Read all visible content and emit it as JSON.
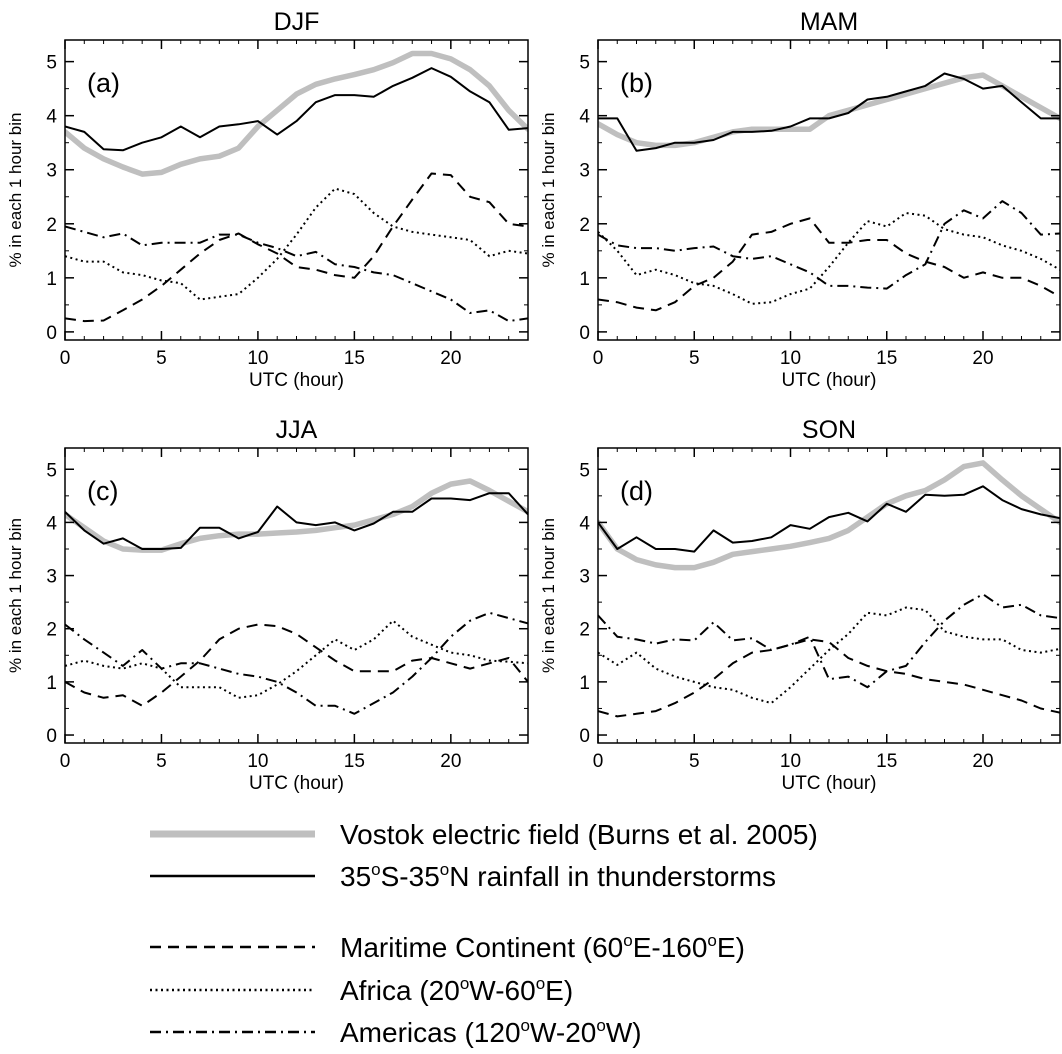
{
  "chart_data": {
    "x_axis_label": "UTC (hour)",
    "y_axis_label": "% in each 1 hour bin",
    "x_ticks": [
      0,
      5,
      10,
      15,
      20
    ],
    "x_range": [
      0,
      24
    ],
    "y_ticks": [
      0,
      1,
      2,
      3,
      4,
      5
    ],
    "y_range": [
      -0.15,
      5.4
    ],
    "grid": false,
    "line_colors": {
      "vostok": "#bfbfbf",
      "rainfall": "#000000",
      "maritime": "#000000",
      "africa": "#000000",
      "americas": "#000000"
    },
    "legend": [
      {
        "key": "vostok",
        "style": "thick-gray",
        "parts": [
          {
            "t": "Vostok electric field (Burns et al. 2005)"
          }
        ]
      },
      {
        "key": "rainfall",
        "style": "solid",
        "parts": [
          {
            "t": "35"
          },
          {
            "t": "o",
            "sup": true
          },
          {
            "t": "S-35"
          },
          {
            "t": "o",
            "sup": true
          },
          {
            "t": "N rainfall in thunderstorms"
          }
        ]
      },
      {
        "key": "maritime",
        "style": "dashed",
        "parts": [
          {
            "t": "Maritime Continent (60"
          },
          {
            "t": "o",
            "sup": true
          },
          {
            "t": "E-160"
          },
          {
            "t": "o",
            "sup": true
          },
          {
            "t": "E)"
          }
        ]
      },
      {
        "key": "africa",
        "style": "dotted",
        "parts": [
          {
            "t": "Africa (20"
          },
          {
            "t": "o",
            "sup": true
          },
          {
            "t": "W-60"
          },
          {
            "t": "o",
            "sup": true
          },
          {
            "t": "E)"
          }
        ]
      },
      {
        "key": "americas",
        "style": "dashdot",
        "parts": [
          {
            "t": "Americas (120"
          },
          {
            "t": "o",
            "sup": true
          },
          {
            "t": "W-20"
          },
          {
            "t": "o",
            "sup": true
          },
          {
            "t": "W)"
          }
        ]
      }
    ],
    "panels": [
      {
        "id": "djf",
        "title": "DJF",
        "label": "(a)",
        "type": "line",
        "x": [
          0,
          1,
          2,
          3,
          4,
          5,
          6,
          7,
          8,
          9,
          10,
          11,
          12,
          13,
          14,
          15,
          16,
          17,
          18,
          19,
          20,
          21,
          22,
          23,
          24
        ],
        "series": {
          "vostok": [
            3.7,
            3.4,
            3.2,
            3.05,
            2.92,
            2.95,
            3.1,
            3.2,
            3.25,
            3.4,
            3.8,
            4.1,
            4.4,
            4.58,
            4.68,
            4.76,
            4.85,
            4.98,
            5.15,
            5.15,
            5.05,
            4.85,
            4.55,
            4.1,
            3.75
          ],
          "rainfall": [
            3.8,
            3.7,
            3.38,
            3.36,
            3.5,
            3.6,
            3.8,
            3.6,
            3.8,
            3.84,
            3.9,
            3.65,
            3.9,
            4.25,
            4.38,
            4.38,
            4.35,
            4.55,
            4.7,
            4.88,
            4.72,
            4.45,
            4.25,
            3.74,
            3.77
          ],
          "maritime": [
            0.25,
            0.2,
            0.21,
            0.4,
            0.6,
            0.85,
            1.15,
            1.45,
            1.7,
            1.82,
            1.62,
            1.45,
            1.2,
            1.15,
            1.05,
            1.0,
            1.4,
            1.95,
            2.45,
            2.93,
            2.9,
            2.5,
            2.4,
            2.0,
            1.95
          ],
          "africa": [
            1.4,
            1.3,
            1.3,
            1.1,
            1.05,
            0.95,
            0.9,
            0.6,
            0.65,
            0.7,
            1.0,
            1.35,
            1.8,
            2.3,
            2.65,
            2.55,
            2.2,
            1.95,
            1.85,
            1.8,
            1.75,
            1.7,
            1.4,
            1.5,
            1.45
          ],
          "americas": [
            1.95,
            1.85,
            1.75,
            1.82,
            1.6,
            1.65,
            1.65,
            1.65,
            1.8,
            1.8,
            1.65,
            1.55,
            1.4,
            1.48,
            1.25,
            1.2,
            1.1,
            1.05,
            0.9,
            0.75,
            0.6,
            0.35,
            0.4,
            0.2,
            0.25
          ]
        }
      },
      {
        "id": "mam",
        "title": "MAM",
        "label": "(b)",
        "type": "line",
        "x": [
          0,
          1,
          2,
          3,
          4,
          5,
          6,
          7,
          8,
          9,
          10,
          11,
          12,
          13,
          14,
          15,
          16,
          17,
          18,
          19,
          20,
          21,
          22,
          23,
          24
        ],
        "series": {
          "vostok": [
            3.85,
            3.65,
            3.5,
            3.45,
            3.45,
            3.5,
            3.6,
            3.7,
            3.75,
            3.75,
            3.75,
            3.75,
            4.0,
            4.1,
            4.2,
            4.3,
            4.4,
            4.5,
            4.6,
            4.7,
            4.75,
            4.55,
            4.35,
            4.15,
            3.95
          ],
          "rainfall": [
            3.95,
            3.95,
            3.35,
            3.4,
            3.5,
            3.5,
            3.55,
            3.7,
            3.7,
            3.72,
            3.8,
            3.95,
            3.95,
            4.05,
            4.3,
            4.35,
            4.45,
            4.55,
            4.78,
            4.68,
            4.5,
            4.55,
            4.25,
            3.95,
            3.95
          ],
          "maritime": [
            0.6,
            0.55,
            0.45,
            0.4,
            0.55,
            0.85,
            1.0,
            1.3,
            1.8,
            1.85,
            2.0,
            2.1,
            1.65,
            1.65,
            1.7,
            1.7,
            1.45,
            1.3,
            1.2,
            1.0,
            1.1,
            1.0,
            1.0,
            0.85,
            0.65
          ],
          "africa": [
            1.85,
            1.5,
            1.05,
            1.15,
            1.05,
            0.9,
            0.85,
            0.7,
            0.52,
            0.55,
            0.7,
            0.8,
            1.2,
            1.65,
            2.05,
            1.95,
            2.2,
            2.15,
            1.9,
            1.8,
            1.75,
            1.6,
            1.5,
            1.35,
            1.15
          ],
          "americas": [
            1.8,
            1.6,
            1.55,
            1.55,
            1.5,
            1.55,
            1.58,
            1.4,
            1.35,
            1.4,
            1.25,
            1.1,
            0.85,
            0.85,
            0.82,
            0.8,
            1.05,
            1.25,
            2.0,
            2.25,
            2.1,
            2.42,
            2.2,
            1.8,
            1.82
          ]
        }
      },
      {
        "id": "jja",
        "title": "JJA",
        "label": "(c)",
        "type": "line",
        "x": [
          0,
          1,
          2,
          3,
          4,
          5,
          6,
          7,
          8,
          9,
          10,
          11,
          12,
          13,
          14,
          15,
          16,
          17,
          18,
          19,
          20,
          21,
          22,
          23,
          24
        ],
        "series": {
          "vostok": [
            4.15,
            3.9,
            3.65,
            3.5,
            3.48,
            3.48,
            3.6,
            3.7,
            3.75,
            3.78,
            3.78,
            3.8,
            3.82,
            3.85,
            3.9,
            3.95,
            4.05,
            4.15,
            4.3,
            4.55,
            4.72,
            4.78,
            4.6,
            4.4,
            4.2
          ],
          "rainfall": [
            4.2,
            3.85,
            3.6,
            3.7,
            3.5,
            3.5,
            3.52,
            3.9,
            3.9,
            3.7,
            3.82,
            4.3,
            4.0,
            3.95,
            4.0,
            3.85,
            3.98,
            4.2,
            4.2,
            4.45,
            4.45,
            4.42,
            4.55,
            4.55,
            4.15
          ],
          "maritime": [
            1.0,
            0.8,
            0.7,
            0.75,
            0.55,
            0.8,
            1.1,
            1.4,
            1.8,
            2.0,
            2.08,
            2.05,
            1.9,
            1.65,
            1.4,
            1.2,
            1.2,
            1.2,
            1.4,
            1.45,
            1.35,
            1.25,
            1.35,
            1.45,
            1.0
          ],
          "africa": [
            1.3,
            1.4,
            1.3,
            1.25,
            1.35,
            1.25,
            0.9,
            0.9,
            0.9,
            0.7,
            0.75,
            0.95,
            1.2,
            1.5,
            1.8,
            1.6,
            1.8,
            2.15,
            1.85,
            1.7,
            1.55,
            1.5,
            1.4,
            1.38,
            1.35
          ],
          "americas": [
            2.08,
            1.8,
            1.55,
            1.3,
            1.6,
            1.25,
            1.35,
            1.35,
            1.25,
            1.15,
            1.1,
            1.0,
            0.8,
            0.55,
            0.55,
            0.4,
            0.6,
            0.8,
            1.1,
            1.45,
            1.85,
            2.15,
            2.3,
            2.2,
            2.1
          ]
        }
      },
      {
        "id": "son",
        "title": "SON",
        "label": "(d)",
        "type": "line",
        "x": [
          0,
          1,
          2,
          3,
          4,
          5,
          6,
          7,
          8,
          9,
          10,
          11,
          12,
          13,
          14,
          15,
          16,
          17,
          18,
          19,
          20,
          21,
          22,
          23,
          24
        ],
        "series": {
          "vostok": [
            4.0,
            3.5,
            3.3,
            3.2,
            3.15,
            3.15,
            3.25,
            3.4,
            3.45,
            3.5,
            3.55,
            3.62,
            3.7,
            3.85,
            4.1,
            4.35,
            4.5,
            4.6,
            4.8,
            5.05,
            5.12,
            4.8,
            4.5,
            4.25,
            4.0
          ],
          "rainfall": [
            4.0,
            3.5,
            3.72,
            3.5,
            3.5,
            3.45,
            3.85,
            3.62,
            3.65,
            3.72,
            3.95,
            3.88,
            4.1,
            4.18,
            4.02,
            4.35,
            4.2,
            4.52,
            4.5,
            4.52,
            4.68,
            4.42,
            4.25,
            4.15,
            4.08
          ],
          "maritime": [
            0.45,
            0.35,
            0.4,
            0.45,
            0.6,
            0.8,
            1.05,
            1.35,
            1.55,
            1.6,
            1.7,
            1.8,
            1.75,
            1.45,
            1.3,
            1.2,
            1.15,
            1.05,
            1.0,
            0.95,
            0.85,
            0.75,
            0.65,
            0.5,
            0.42
          ],
          "africa": [
            1.55,
            1.32,
            1.55,
            1.25,
            1.1,
            1.0,
            0.9,
            0.85,
            0.7,
            0.6,
            0.9,
            1.25,
            1.6,
            1.9,
            2.3,
            2.25,
            2.4,
            2.35,
            1.95,
            1.85,
            1.8,
            1.8,
            1.6,
            1.55,
            1.62
          ],
          "americas": [
            2.25,
            1.85,
            1.8,
            1.72,
            1.8,
            1.78,
            2.12,
            1.78,
            1.82,
            1.6,
            1.7,
            1.85,
            1.05,
            1.1,
            0.9,
            1.2,
            1.3,
            1.75,
            2.15,
            2.45,
            2.65,
            2.4,
            2.45,
            2.25,
            2.2
          ]
        }
      }
    ]
  }
}
